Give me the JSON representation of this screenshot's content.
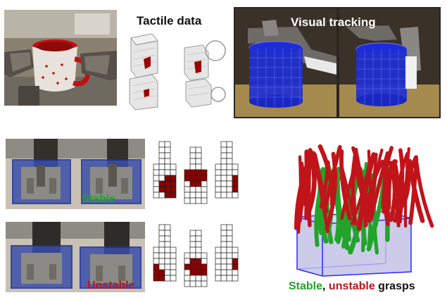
{
  "labels": {
    "tactile_data": "Tactile data",
    "visual_tracking": "Visual tracking",
    "stable_top": "Stable",
    "unstable_bottom": "Unstable",
    "stable_caption": "Stable",
    "comma": ",",
    "unstable_caption": "unstable",
    "grasps_caption": "grasps"
  },
  "colors": {
    "stable_green": "#22a32a",
    "unstable_red": "#c0141a",
    "tactile_dark_red": "#8b0000",
    "grid_line": "#222222"
  },
  "tactile_grids": {
    "stable": [
      [
        [
          0,
          0,
          0,
          0
        ],
        [
          0,
          0,
          0,
          0
        ],
        [
          0,
          0,
          0,
          0
        ],
        [
          0,
          0,
          0,
          0
        ],
        [
          0,
          0,
          0,
          0
        ],
        [
          0,
          0,
          0,
          0
        ],
        [
          0,
          0,
          1,
          1
        ],
        [
          0,
          1,
          1,
          1
        ],
        [
          0,
          1,
          1,
          1
        ],
        [
          0,
          0,
          1,
          1
        ]
      ],
      [
        [
          0,
          0,
          0,
          0
        ],
        [
          0,
          0,
          0,
          0
        ],
        [
          0,
          0,
          0,
          0
        ],
        [
          0,
          0,
          0,
          0
        ],
        [
          1,
          1,
          1,
          1
        ],
        [
          1,
          1,
          1,
          1
        ],
        [
          0,
          1,
          1,
          0
        ],
        [
          0,
          0,
          0,
          0
        ],
        [
          0,
          0,
          0,
          0
        ],
        [
          0,
          0,
          0,
          0
        ]
      ],
      [
        [
          0,
          0,
          0,
          0
        ],
        [
          0,
          0,
          0,
          0
        ],
        [
          0,
          0,
          0,
          0
        ],
        [
          0,
          0,
          0,
          0
        ],
        [
          0,
          0,
          0,
          0
        ],
        [
          0,
          0,
          0,
          0
        ],
        [
          0,
          0,
          0,
          1
        ],
        [
          0,
          0,
          0,
          1
        ],
        [
          0,
          0,
          0,
          1
        ],
        [
          0,
          0,
          0,
          0
        ]
      ]
    ],
    "unstable": [
      [
        [
          0,
          0,
          0,
          0
        ],
        [
          0,
          0,
          0,
          0
        ],
        [
          0,
          0,
          0,
          0
        ],
        [
          0,
          0,
          0,
          0
        ],
        [
          0,
          0,
          0,
          0
        ],
        [
          0,
          0,
          0,
          0
        ],
        [
          0,
          0,
          0,
          0
        ],
        [
          1,
          0,
          0,
          0
        ],
        [
          1,
          1,
          0,
          0
        ],
        [
          1,
          1,
          0,
          0
        ]
      ],
      [
        [
          0,
          0,
          0,
          0
        ],
        [
          0,
          0,
          0,
          0
        ],
        [
          0,
          0,
          0,
          0
        ],
        [
          0,
          0,
          0,
          0
        ],
        [
          0,
          0,
          0,
          0
        ],
        [
          0,
          1,
          1,
          0
        ],
        [
          1,
          1,
          1,
          1
        ],
        [
          0,
          1,
          1,
          1
        ],
        [
          0,
          0,
          0,
          0
        ],
        [
          0,
          0,
          0,
          0
        ]
      ],
      [
        [
          0,
          0,
          0,
          0
        ],
        [
          0,
          0,
          0,
          0
        ],
        [
          0,
          0,
          0,
          0
        ],
        [
          0,
          0,
          0,
          0
        ],
        [
          0,
          0,
          0,
          0
        ],
        [
          0,
          0,
          0,
          0
        ],
        [
          0,
          0,
          0,
          1
        ],
        [
          0,
          0,
          0,
          1
        ],
        [
          0,
          0,
          0,
          0
        ],
        [
          0,
          0,
          0,
          0
        ]
      ]
    ]
  }
}
